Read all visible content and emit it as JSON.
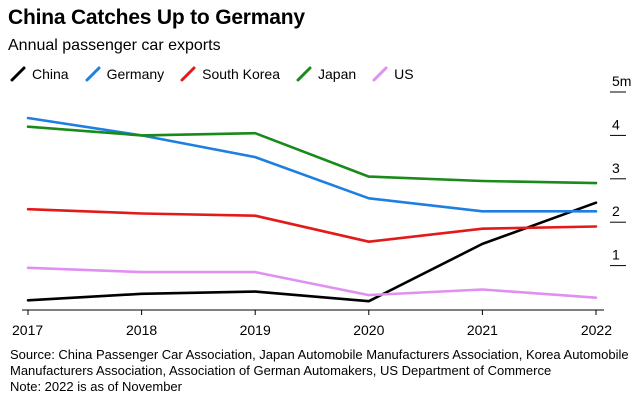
{
  "title": "China Catches Up to Germany",
  "subtitle": "Annual passenger car exports",
  "footer": {
    "source": "Source: China Passenger Car Association, Japan Automobile Manufacturers Association, Korea Automobile Manufacturers Association, Association of German Automakers, US Department of Commerce",
    "note": "Note: 2022 is as of November"
  },
  "chart_data": {
    "type": "line",
    "title": "China Catches Up to Germany",
    "subtitle": "Annual passenger car exports",
    "x": [
      "2017",
      "2018",
      "2019",
      "2020",
      "2021",
      "2022"
    ],
    "y_ticks": [
      {
        "value": 1,
        "label": "1"
      },
      {
        "value": 2,
        "label": "2"
      },
      {
        "value": 3,
        "label": "3"
      },
      {
        "value": 4,
        "label": "4"
      },
      {
        "value": 5,
        "label": "5m"
      }
    ],
    "ylim": [
      0,
      5
    ],
    "grid": false,
    "legend_position": "top-left",
    "series": [
      {
        "name": "China",
        "color": "#000000",
        "values": [
          0.2,
          0.35,
          0.4,
          0.18,
          1.5,
          2.45
        ]
      },
      {
        "name": "Germany",
        "color": "#1f7fe0",
        "values": [
          4.4,
          4.0,
          3.5,
          2.55,
          2.25,
          2.25
        ]
      },
      {
        "name": "South Korea",
        "color": "#e31a1a",
        "values": [
          2.3,
          2.2,
          2.15,
          1.55,
          1.85,
          1.9
        ]
      },
      {
        "name": "Japan",
        "color": "#1a8a1a",
        "values": [
          4.2,
          4.0,
          4.05,
          3.05,
          2.95,
          2.9
        ]
      },
      {
        "name": "US",
        "color": "#df90f0",
        "values": [
          0.95,
          0.85,
          0.85,
          0.32,
          0.45,
          0.26
        ]
      }
    ]
  }
}
